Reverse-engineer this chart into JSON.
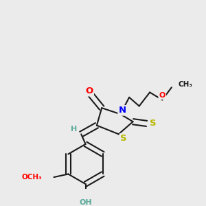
{
  "bg_color": "#ebebeb",
  "bond_color": "#1a1a1a",
  "bond_width": 1.5,
  "colors": {
    "O": "#ff0000",
    "N": "#0000ff",
    "S_yellow": "#b8b800",
    "S_ring": "#b8b800",
    "C": "#1a1a1a",
    "H_teal": "#5aaa99",
    "O_red": "#ff0000"
  },
  "figsize": [
    3.0,
    3.0
  ],
  "dpi": 100,
  "xlim": [
    0,
    300
  ],
  "ylim": [
    0,
    300
  ]
}
